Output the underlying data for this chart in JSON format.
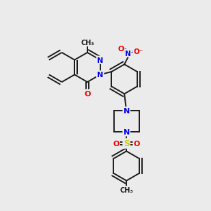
{
  "bg_color": "#ebebeb",
  "bond_color": "#1a1a1a",
  "N_color": "#0000ee",
  "O_color": "#ee0000",
  "S_color": "#cccc00",
  "lw": 1.4,
  "dbo": 0.07,
  "fs": 8.5
}
